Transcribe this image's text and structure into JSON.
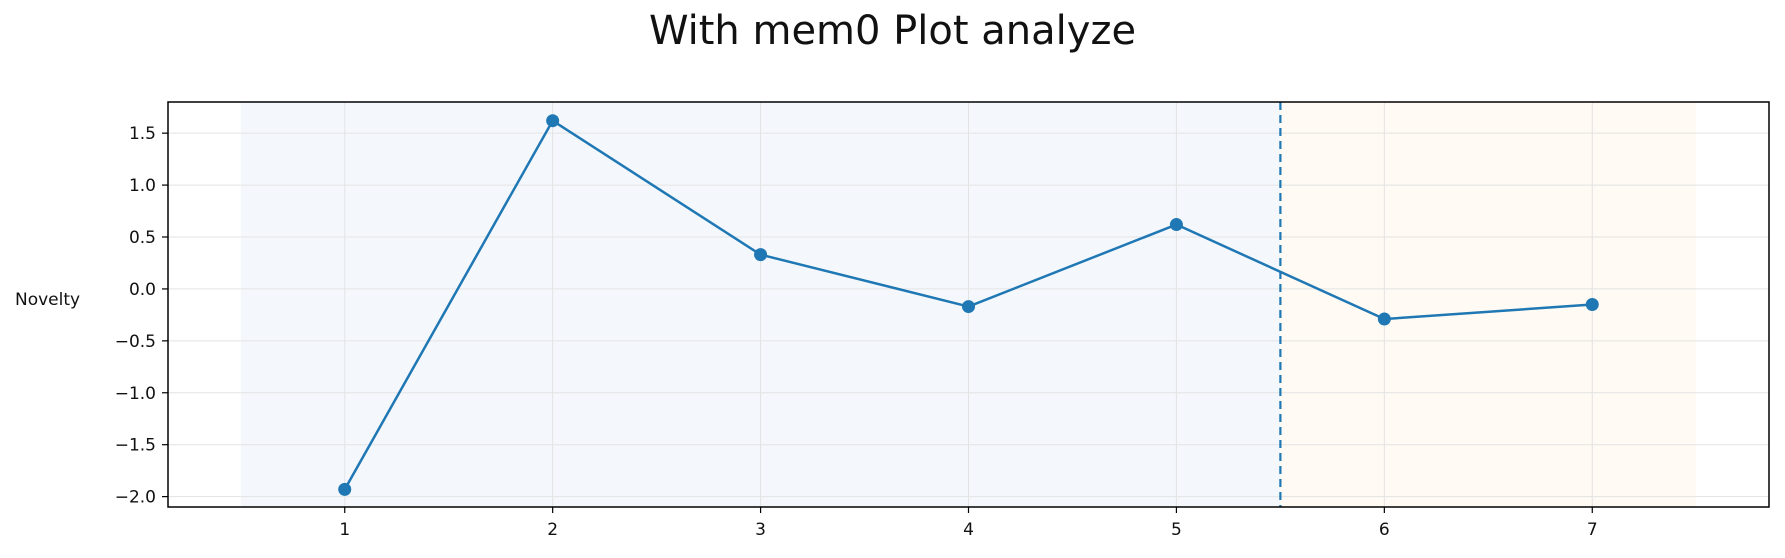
{
  "chart_data": {
    "type": "line",
    "title": "With mem0 Plot analyze",
    "xlabel": "",
    "ylabel": "Novelty",
    "x": [
      1,
      2,
      3,
      4,
      5,
      6,
      7
    ],
    "series": [
      {
        "values": [
          -1.93,
          1.62,
          0.33,
          -0.17,
          0.62,
          -0.29,
          -0.15
        ]
      }
    ],
    "xlim": [
      0.15,
      7.85
    ],
    "ylim": [
      -2.1,
      1.8
    ],
    "xticks": [
      1,
      2,
      3,
      4,
      5,
      6,
      7
    ],
    "yticks": [
      1.5,
      1.0,
      0.5,
      0.0,
      -0.5,
      -1.0,
      -1.5,
      -2.0
    ],
    "ytick_labels": [
      "1.5",
      "1.0",
      "0.5",
      "0.0",
      "−0.5",
      "−1.0",
      "−1.5",
      "−2.0"
    ],
    "grid": true,
    "regions": [
      {
        "x_start": 0.5,
        "x_end": 5.5,
        "color": "#f4f8fd"
      },
      {
        "x_start": 5.5,
        "x_end": 7.5,
        "color": "#fffaf3"
      }
    ],
    "vline": {
      "x": 5.5,
      "style": "dashed"
    },
    "colors": {
      "line": "#1f77b4",
      "grid": "#e3e3e3",
      "axes": "#000000"
    }
  }
}
